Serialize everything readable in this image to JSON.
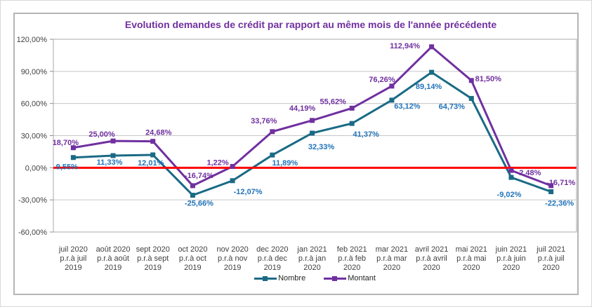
{
  "chart_data": {
    "type": "line",
    "title": "Evolution demandes de crédit par rapport au même mois de l'année précédente",
    "categories": [
      [
        "juil 2020",
        "p.r.à juil",
        "2019"
      ],
      [
        "août 2020",
        "p.r.à août",
        "2019"
      ],
      [
        "sept 2020",
        "p.r.à sept",
        "2019"
      ],
      [
        "oct 2020",
        "p.r.à oct",
        "2019"
      ],
      [
        "nov 2020",
        "p.r.à nov",
        "2019"
      ],
      [
        "dec 2020",
        "p.r.à dec",
        "2019"
      ],
      [
        "jan 2021",
        "p.r.à jan",
        "2020"
      ],
      [
        "feb 2021",
        "p.r.à feb",
        "2020"
      ],
      [
        "mar 2021",
        "p.r.à mar",
        "2020"
      ],
      [
        "avril 2021",
        "p.r.à avril",
        "2020"
      ],
      [
        "mai 2021",
        "p.r.à mai",
        "2020"
      ],
      [
        "juin 2021",
        "p.r.à juin",
        "2020"
      ],
      [
        "juil 2021",
        "p.r.à juil",
        "2020"
      ]
    ],
    "series": [
      {
        "name": "Nombre",
        "color": "#1A6A85",
        "label_color": "#2273B8",
        "values": [
          9.55,
          11.33,
          12.01,
          -25.66,
          -12.07,
          11.89,
          32.33,
          41.37,
          63.12,
          89.14,
          64.73,
          -9.02,
          -22.36
        ],
        "labels": [
          "9,55%",
          "11,33%",
          "12,01%",
          "-25,66%",
          "-12,07%",
          "11,89%",
          "32,33%",
          "41,37%",
          "63,12%",
          "89,14%",
          "64,73%",
          "-9,02%",
          "-22,36%"
        ],
        "label_offsets": [
          [
            -9,
            17
          ],
          [
            -5,
            13
          ],
          [
            -3,
            15
          ],
          [
            9,
            15
          ],
          [
            22,
            19
          ],
          [
            18,
            15
          ],
          [
            13,
            23
          ],
          [
            20,
            19
          ],
          [
            22,
            12
          ],
          [
            -4,
            24
          ],
          [
            -28,
            15
          ],
          [
            -3,
            28
          ],
          [
            12,
            20
          ]
        ]
      },
      {
        "name": "Montant",
        "color": "#7030A0",
        "label_color": "#7030A0",
        "values": [
          18.7,
          25.0,
          24.68,
          -16.74,
          1.22,
          33.76,
          44.19,
          55.62,
          76.26,
          112.94,
          81.5,
          -2.48,
          -16.71
        ],
        "labels": [
          "18,70%",
          "25,00%",
          "24,68%",
          "-16,74%",
          "1,22%",
          "33,76%",
          "44,19%",
          "55,62%",
          "76,26%",
          "112,94%",
          "81,50%",
          "-2,48%",
          "-16,71%"
        ],
        "label_offsets": [
          [
            -11,
            -4
          ],
          [
            -16,
            -6
          ],
          [
            8,
            -9
          ],
          [
            9,
            -11
          ],
          [
            -21,
            -2
          ],
          [
            -12,
            -12
          ],
          [
            -14,
            -14
          ],
          [
            -27,
            -6
          ],
          [
            -14,
            -6
          ],
          [
            -38,
            2
          ],
          [
            24,
            1
          ],
          [
            25,
            7
          ],
          [
            14,
            -1
          ]
        ]
      }
    ],
    "yticks": [
      {
        "value": 120,
        "label": "120,00%"
      },
      {
        "value": 90,
        "label": "90,00%"
      },
      {
        "value": 60,
        "label": "60,00%"
      },
      {
        "value": 30,
        "label": "30,00%"
      },
      {
        "value": 0,
        "label": "0,00%"
      },
      {
        "value": -30,
        "label": "-30,00%"
      },
      {
        "value": -60,
        "label": "-60,00%"
      }
    ],
    "ylim": [
      -60,
      120
    ],
    "grid": true,
    "zero_line": {
      "value": 0,
      "color": "#FF0000"
    },
    "legend_position": "bottom",
    "axis_text_color": "#404040"
  }
}
